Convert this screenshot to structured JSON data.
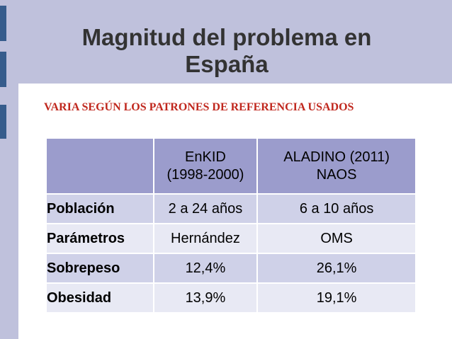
{
  "slide": {
    "title_line1": "Magnitud del problema en",
    "title_line2": "España",
    "subtitle": "VARIA SEGÚN LOS PATRONES DE REFERENCIA USADOS"
  },
  "table": {
    "headers": [
      {
        "line1": "",
        "line2": ""
      },
      {
        "line1": "EnKID",
        "line2": "(1998-2000)"
      },
      {
        "line1": "ALADINO (2011)",
        "line2": "NAOS"
      }
    ],
    "rows": [
      {
        "label": "Población",
        "enkid": "2 a 24 años",
        "aladino": "6 a 10 años"
      },
      {
        "label": "Parámetros",
        "enkid": "Hernández",
        "aladino": "OMS"
      },
      {
        "label": "Sobrepeso",
        "enkid": "12,4%",
        "aladino": "26,1%"
      },
      {
        "label": "Obesidad",
        "enkid": "13,9%",
        "aladino": "19,1%"
      }
    ]
  },
  "colors": {
    "header_band": "#bfc1dc",
    "accent_bars": "#365c8c",
    "subtitle": "#c0271d",
    "table_header": "#9b9ccc",
    "row_odd": "#cfd1e8",
    "row_even": "#e8e9f4"
  }
}
